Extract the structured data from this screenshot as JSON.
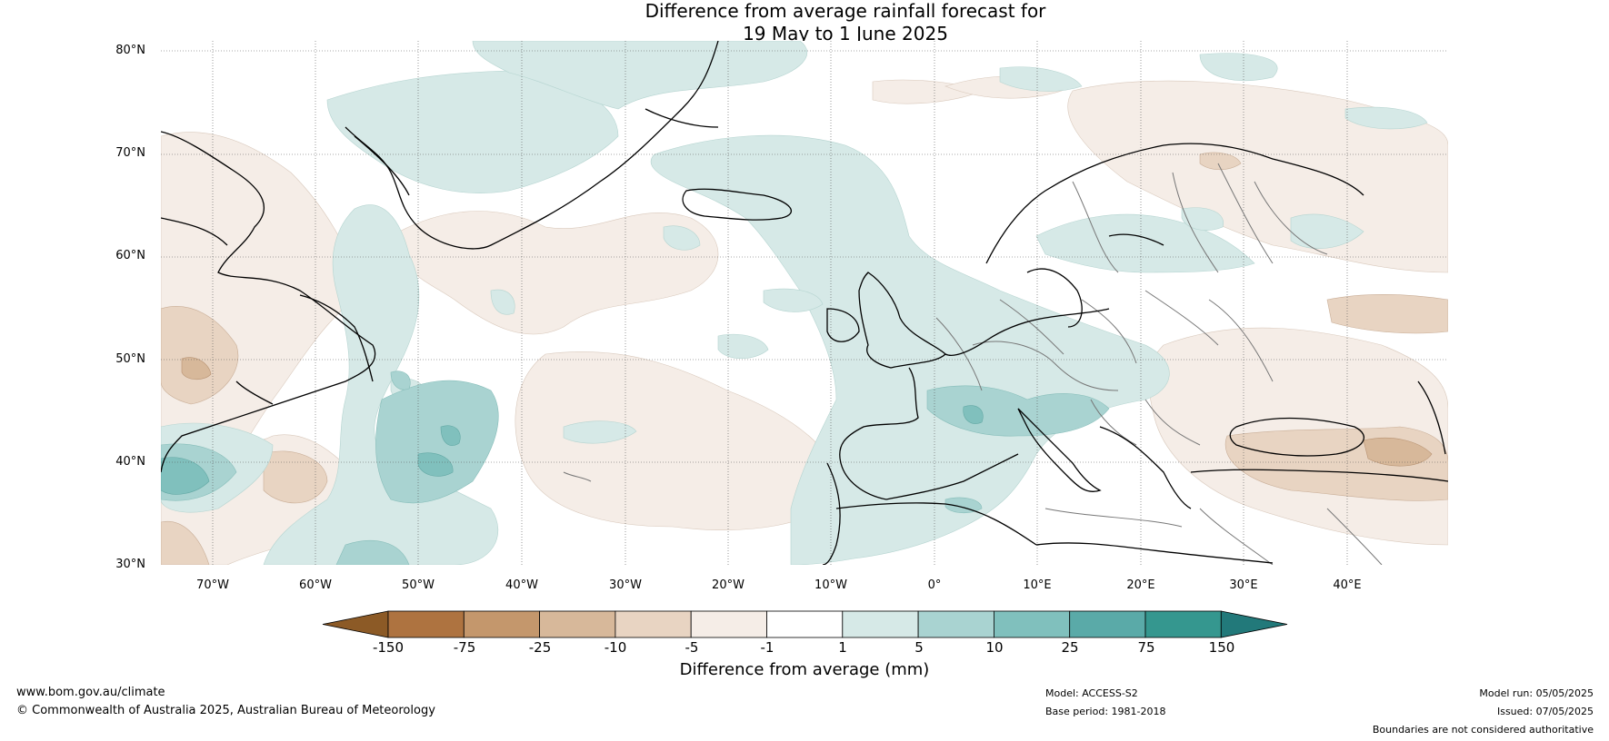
{
  "title": {
    "line1": "Difference from average rainfall forecast for",
    "line2": "19 May to 1 June 2025"
  },
  "lat_labels": [
    "80°N",
    "70°N",
    "60°N",
    "50°N",
    "40°N",
    "30°N"
  ],
  "lon_labels": [
    "70°W",
    "60°W",
    "50°W",
    "40°W",
    "30°W",
    "20°W",
    "10°W",
    "0°",
    "10°E",
    "20°E",
    "30°E",
    "40°E"
  ],
  "colorbar": {
    "title": "Difference from average (mm)",
    "ticks": [
      "-150",
      "-75",
      "-25",
      "-10",
      "-5",
      "-1",
      "1",
      "5",
      "10",
      "25",
      "75",
      "150"
    ],
    "colors": [
      "#8c5a26",
      "#ae7340",
      "#c4976c",
      "#d7b89a",
      "#e8d4c2",
      "#f5ede7",
      "#ffffff",
      "#d6e9e7",
      "#a9d3d1",
      "#80c0bd",
      "#5aaaa8",
      "#35978f",
      "#22797a"
    ]
  },
  "footer": {
    "url": "www.bom.gov.au/climate",
    "copyright": "© Commonwealth of Australia 2025, Australian Bureau of Meteorology",
    "model": "Model: ACCESS-S2",
    "base_period": "Base period: 1981-2018",
    "model_run": "Model run: 05/05/2025",
    "issued": "Issued: 07/05/2025",
    "disclaimer": "Boundaries are not considered authoritative"
  }
}
